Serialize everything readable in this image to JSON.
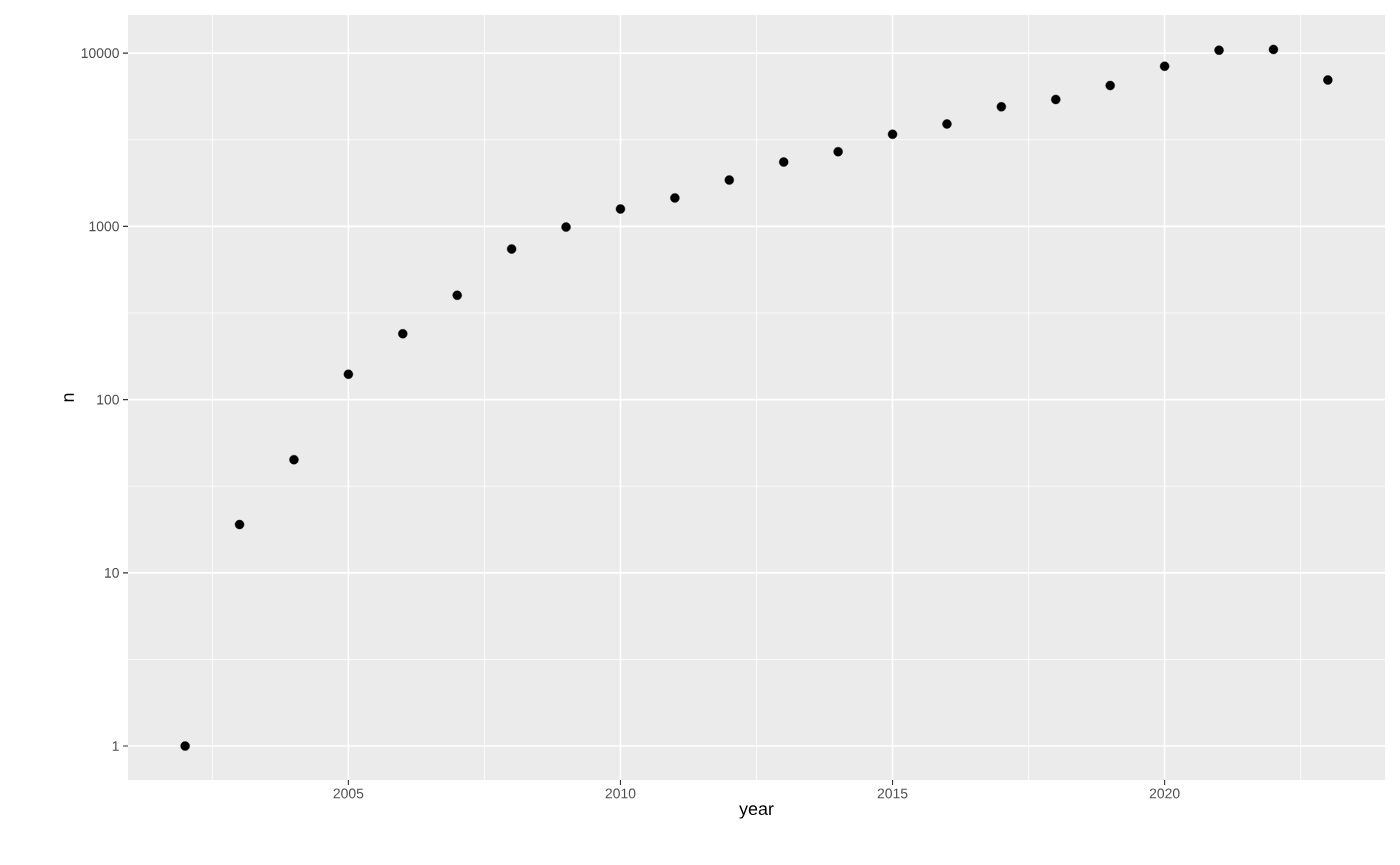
{
  "chart_data": {
    "type": "scatter",
    "xlabel": "year",
    "ylabel": "n",
    "x": [
      2002,
      2003,
      2004,
      2005,
      2006,
      2007,
      2008,
      2009,
      2010,
      2011,
      2012,
      2013,
      2014,
      2015,
      2016,
      2017,
      2018,
      2019,
      2020,
      2021,
      2022,
      2023
    ],
    "values": [
      1,
      19,
      45,
      140,
      240,
      400,
      740,
      990,
      1260,
      1460,
      1850,
      2350,
      2700,
      3400,
      3900,
      4900,
      5400,
      6500,
      8400,
      10400,
      10500,
      7000
    ],
    "color": "#000000",
    "marker": "circle",
    "log": "y",
    "grid": true,
    "xlim": [
      2000.95,
      2024.05
    ],
    "ylim": [
      0.637,
      16600
    ],
    "xticks": [
      {
        "value": 2002.5,
        "label": null
      },
      2005,
      {
        "value": 2007.5,
        "label": null
      },
      2010,
      {
        "value": 2012.5,
        "label": null
      },
      2015,
      {
        "value": 2017.5,
        "label": null
      },
      2020,
      {
        "value": 2022.5,
        "label": null
      }
    ],
    "yticks": [
      1,
      {
        "value": 3.162,
        "label": null
      },
      10,
      {
        "value": 31.62,
        "label": null
      },
      100,
      {
        "value": 316.2,
        "label": null
      },
      1000,
      {
        "value": 3162,
        "label": null
      },
      10000
    ]
  }
}
